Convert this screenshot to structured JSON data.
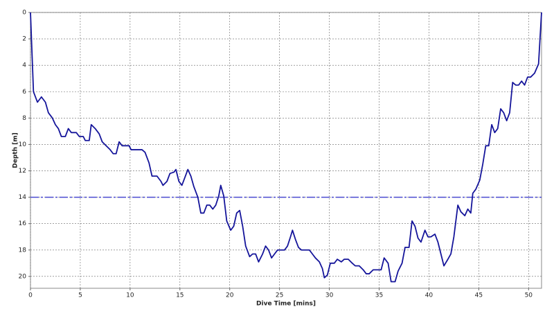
{
  "chart_data": {
    "type": "line",
    "x_label": "Dive Time [mins]",
    "y_label": "Depth [m]",
    "xlim": [
      0,
      51.3
    ],
    "ylim": [
      0,
      20.9
    ],
    "y_reversed": true,
    "xticks": [
      0,
      5,
      10,
      15,
      20,
      25,
      30,
      35,
      40,
      45,
      50
    ],
    "yticks": [
      0,
      2,
      4,
      6,
      8,
      10,
      12,
      14,
      16,
      18,
      20
    ],
    "grid": true,
    "reference_line": {
      "value": 14,
      "color": "#4a4ad0"
    },
    "x": [
      0,
      0.3,
      0.7,
      1.1,
      1.5,
      1.8,
      2.2,
      2.5,
      2.8,
      3.1,
      3.5,
      3.8,
      4.1,
      4.6,
      4.9,
      5.3,
      5.5,
      5.9,
      6.1,
      6.5,
      6.9,
      7.2,
      7.6,
      8.0,
      8.3,
      8.6,
      8.9,
      9.2,
      9.9,
      10.1,
      11.2,
      11.5,
      11.9,
      12.2,
      12.7,
      13.1,
      13.3,
      13.7,
      14.0,
      14.4,
      14.6,
      14.9,
      15.2,
      15.5,
      15.8,
      16.1,
      16.4,
      16.8,
      17.1,
      17.4,
      17.7,
      18.0,
      18.3,
      18.6,
      18.9,
      19.1,
      19.4,
      19.7,
      20.1,
      20.4,
      20.7,
      21.0,
      21.3,
      21.6,
      22.0,
      22.3,
      22.6,
      22.9,
      23.3,
      23.6,
      23.9,
      24.2,
      24.5,
      24.8,
      25.5,
      25.8,
      26.1,
      26.3,
      26.6,
      26.9,
      27.2,
      28.0,
      28.3,
      28.6,
      29.0,
      29.3,
      29.5,
      29.8,
      30.1,
      30.5,
      30.8,
      31.2,
      31.5,
      31.9,
      32.3,
      32.6,
      33.0,
      33.4,
      33.7,
      34.0,
      34.4,
      35.2,
      35.5,
      35.9,
      36.2,
      36.6,
      36.9,
      37.3,
      37.6,
      38.0,
      38.3,
      38.6,
      38.9,
      39.2,
      39.6,
      39.9,
      40.2,
      40.6,
      40.9,
      41.2,
      41.5,
      41.9,
      42.2,
      42.5,
      42.9,
      43.2,
      43.6,
      43.9,
      44.2,
      44.4,
      44.7,
      45.1,
      45.4,
      45.7,
      46.0,
      46.3,
      46.6,
      46.9,
      47.2,
      47.5,
      47.8,
      48.1,
      48.4,
      48.7,
      49.0,
      49.3,
      49.6,
      49.9,
      50.2,
      50.6,
      51.0,
      51.3
    ],
    "series": [
      {
        "color": "#14149a",
        "values": [
          0,
          6,
          6.8,
          6.4,
          6.8,
          7.6,
          8.0,
          8.5,
          8.8,
          9.4,
          9.4,
          8.8,
          9.1,
          9.1,
          9.4,
          9.4,
          9.7,
          9.7,
          8.5,
          8.8,
          9.2,
          9.8,
          10.1,
          10.4,
          10.7,
          10.7,
          9.8,
          10.1,
          10.1,
          10.4,
          10.4,
          10.6,
          11.4,
          12.4,
          12.4,
          12.8,
          13.1,
          12.8,
          12.2,
          12.1,
          11.9,
          12.8,
          13.1,
          12.5,
          11.9,
          12.4,
          13.2,
          14.0,
          15.2,
          15.2,
          14.6,
          14.6,
          14.9,
          14.6,
          13.9,
          13.1,
          13.9,
          15.8,
          16.5,
          16.2,
          15.2,
          15.0,
          16.2,
          17.7,
          18.5,
          18.3,
          18.3,
          18.9,
          18.3,
          17.7,
          18.0,
          18.6,
          18.3,
          18.0,
          18.0,
          17.7,
          17.0,
          16.5,
          17.2,
          17.8,
          18.0,
          18.0,
          18.3,
          18.6,
          18.9,
          19.4,
          20.1,
          19.9,
          19.0,
          19.0,
          18.7,
          18.9,
          18.7,
          18.7,
          19.0,
          19.2,
          19.2,
          19.5,
          19.8,
          19.8,
          19.5,
          19.5,
          18.6,
          19.0,
          20.4,
          20.4,
          19.6,
          19.0,
          17.8,
          17.8,
          15.8,
          16.2,
          17.1,
          17.4,
          16.5,
          17.0,
          17.0,
          16.8,
          17.4,
          18.3,
          19.2,
          18.7,
          18.3,
          17.0,
          14.6,
          15.1,
          15.4,
          14.9,
          15.2,
          13.7,
          13.4,
          12.7,
          11.5,
          10.1,
          10.1,
          8.5,
          9.1,
          8.8,
          7.3,
          7.6,
          8.2,
          7.6,
          5.3,
          5.5,
          5.5,
          5.2,
          5.5,
          4.9,
          4.9,
          4.6,
          3.9,
          0
        ]
      }
    ]
  }
}
